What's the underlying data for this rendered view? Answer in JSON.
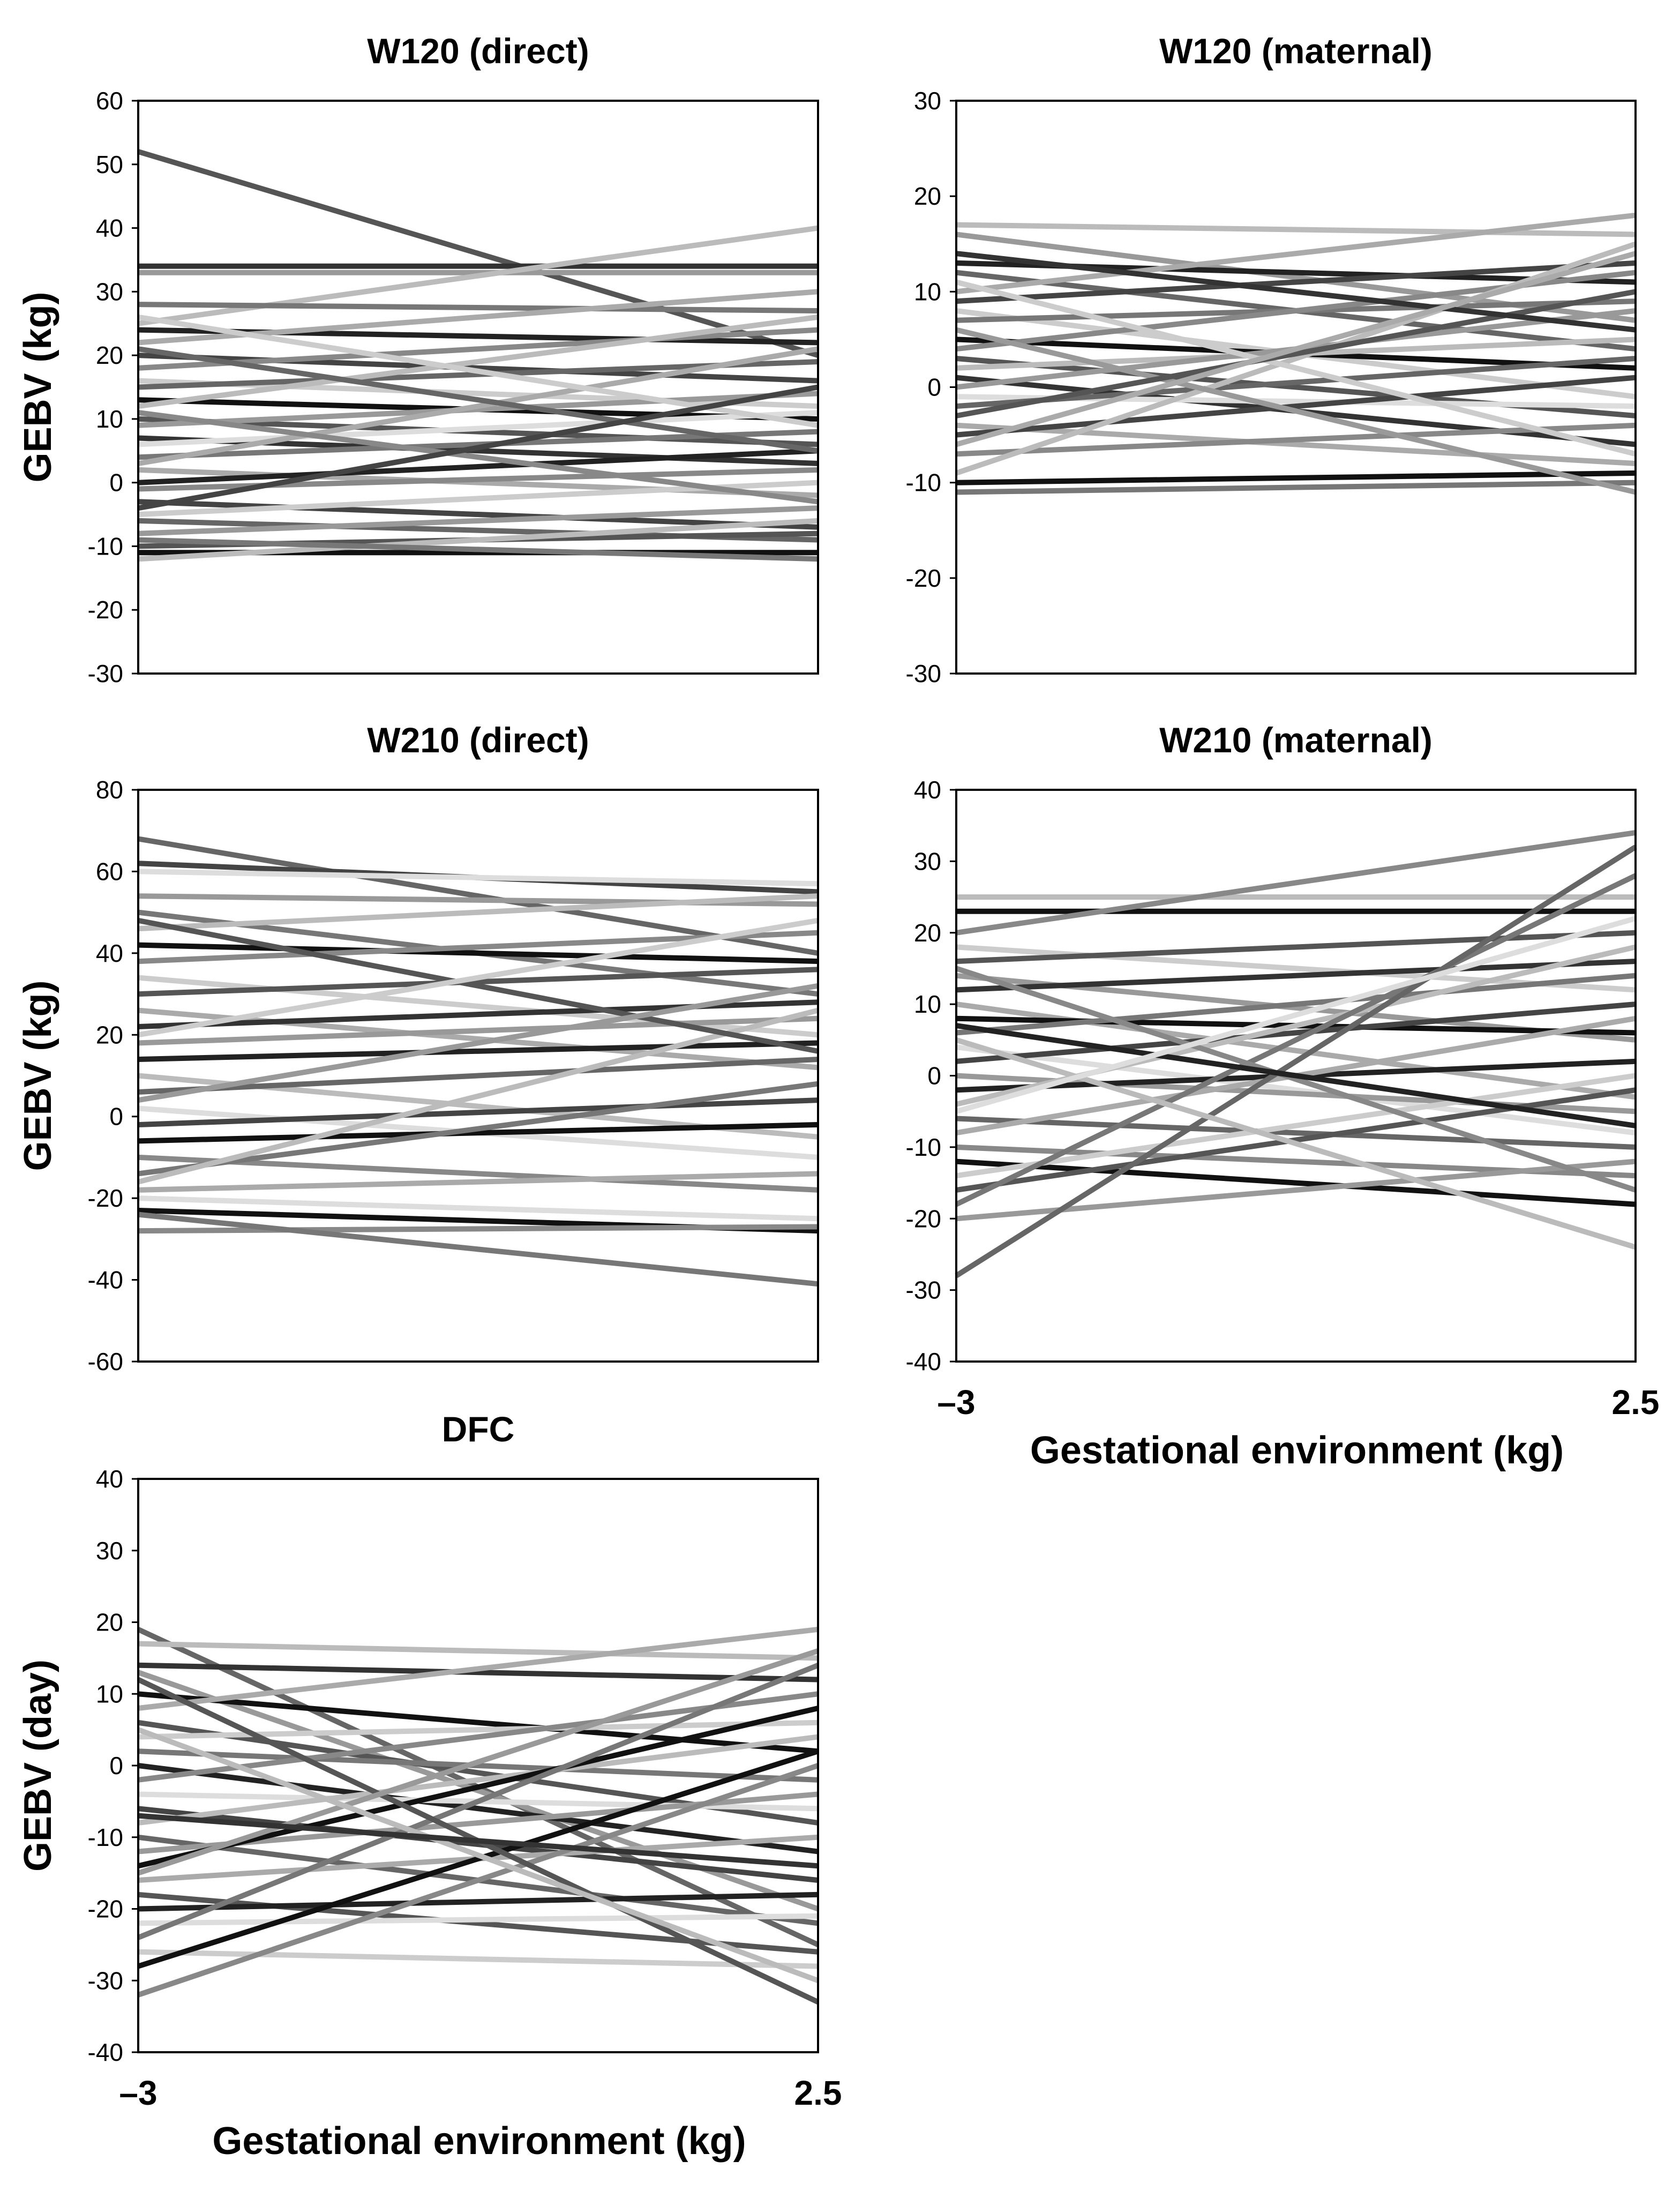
{
  "chart_data": [
    {
      "type": "line",
      "title": "W120 (direct)",
      "ylabel": "GEBV (kg)",
      "xlabel": "",
      "x_tick_labels": [],
      "x": [
        -3,
        2.5
      ],
      "ylim": [
        -30,
        60
      ],
      "y_ticks": [
        "60",
        "50",
        "40",
        "30",
        "20",
        "10",
        "0",
        "-10",
        "-20",
        "-30"
      ],
      "series": [
        {
          "name": "s1",
          "start": 52,
          "end": 20,
          "color": "#555555"
        },
        {
          "name": "s2",
          "start": 34,
          "end": 34,
          "color": "#333333"
        },
        {
          "name": "s3",
          "start": 33,
          "end": 33,
          "color": "#999999"
        },
        {
          "name": "s4",
          "start": 25,
          "end": 40,
          "color": "#bbbbbb"
        },
        {
          "name": "s5",
          "start": 28,
          "end": 27,
          "color": "#777777"
        },
        {
          "name": "s6",
          "start": 24,
          "end": 22,
          "color": "#222222"
        },
        {
          "name": "s7",
          "start": 22,
          "end": 30,
          "color": "#aaaaaa"
        },
        {
          "name": "s8",
          "start": 20,
          "end": 16,
          "color": "#444444"
        },
        {
          "name": "s9",
          "start": 18,
          "end": 24,
          "color": "#888888"
        },
        {
          "name": "s10",
          "start": 16,
          "end": 12,
          "color": "#cccccc"
        },
        {
          "name": "s11",
          "start": 15,
          "end": 19,
          "color": "#666666"
        },
        {
          "name": "s12",
          "start": 13,
          "end": 10,
          "color": "#111111"
        },
        {
          "name": "s13",
          "start": 12,
          "end": 26,
          "color": "#bbbbbb"
        },
        {
          "name": "s14",
          "start": 10,
          "end": 6,
          "color": "#555555"
        },
        {
          "name": "s15",
          "start": 9,
          "end": 14,
          "color": "#999999"
        },
        {
          "name": "s16",
          "start": 7,
          "end": 3,
          "color": "#333333"
        },
        {
          "name": "s17",
          "start": 6,
          "end": 11,
          "color": "#dddddd"
        },
        {
          "name": "s18",
          "start": 4,
          "end": 8,
          "color": "#777777"
        },
        {
          "name": "s19",
          "start": 2,
          "end": -2,
          "color": "#aaaaaa"
        },
        {
          "name": "s20",
          "start": 0,
          "end": 5,
          "color": "#222222"
        },
        {
          "name": "s21",
          "start": -1,
          "end": 2,
          "color": "#888888"
        },
        {
          "name": "s22",
          "start": -3,
          "end": -7,
          "color": "#444444"
        },
        {
          "name": "s23",
          "start": -5,
          "end": 0,
          "color": "#cccccc"
        },
        {
          "name": "s24",
          "start": -6,
          "end": -9,
          "color": "#666666"
        },
        {
          "name": "s25",
          "start": -8,
          "end": -4,
          "color": "#999999"
        },
        {
          "name": "s26",
          "start": -10,
          "end": -8,
          "color": "#555555"
        },
        {
          "name": "s27",
          "start": -11,
          "end": -11,
          "color": "#111111"
        },
        {
          "name": "s28",
          "start": -12,
          "end": -6,
          "color": "#bbbbbb"
        },
        {
          "name": "s29",
          "start": -9,
          "end": -12,
          "color": "#777777"
        },
        {
          "name": "s30",
          "start": 3,
          "end": 21,
          "color": "#aaaaaa"
        },
        {
          "name": "s31",
          "start": 21,
          "end": 5,
          "color": "#666666"
        },
        {
          "name": "s32",
          "start": 26,
          "end": 9,
          "color": "#cccccc"
        },
        {
          "name": "s33",
          "start": 11,
          "end": -3,
          "color": "#888888"
        },
        {
          "name": "s34",
          "start": -4,
          "end": 15,
          "color": "#444444"
        }
      ]
    },
    {
      "type": "line",
      "title": "W120 (maternal)",
      "ylabel": "",
      "xlabel": "",
      "x_tick_labels": [],
      "x": [
        -3,
        2.5
      ],
      "ylim": [
        -30,
        30
      ],
      "y_ticks": [
        "30",
        "20",
        "10",
        "0",
        "-10",
        "-20",
        "-30"
      ],
      "series": [
        {
          "name": "s1",
          "start": 17,
          "end": 16,
          "color": "#bbbbbb"
        },
        {
          "name": "s2",
          "start": 16,
          "end": 7,
          "color": "#999999"
        },
        {
          "name": "s3",
          "start": 13,
          "end": 11,
          "color": "#222222"
        },
        {
          "name": "s4",
          "start": 12,
          "end": 4,
          "color": "#666666"
        },
        {
          "name": "s5",
          "start": 10,
          "end": 18,
          "color": "#aaaaaa"
        },
        {
          "name": "s6",
          "start": 9,
          "end": 13,
          "color": "#444444"
        },
        {
          "name": "s7",
          "start": 8,
          "end": -1,
          "color": "#cccccc"
        },
        {
          "name": "s8",
          "start": 7,
          "end": 9,
          "color": "#777777"
        },
        {
          "name": "s9",
          "start": 5,
          "end": 2,
          "color": "#111111"
        },
        {
          "name": "s10",
          "start": 4,
          "end": 12,
          "color": "#888888"
        },
        {
          "name": "s11",
          "start": 3,
          "end": -3,
          "color": "#555555"
        },
        {
          "name": "s12",
          "start": 2,
          "end": 5,
          "color": "#bbbbbb"
        },
        {
          "name": "s13",
          "start": 1,
          "end": -6,
          "color": "#333333"
        },
        {
          "name": "s14",
          "start": 0,
          "end": 8,
          "color": "#999999"
        },
        {
          "name": "s15",
          "start": -1,
          "end": -2,
          "color": "#dddddd"
        },
        {
          "name": "s16",
          "start": -2,
          "end": 3,
          "color": "#666666"
        },
        {
          "name": "s17",
          "start": -4,
          "end": -8,
          "color": "#aaaaaa"
        },
        {
          "name": "s18",
          "start": -5,
          "end": 1,
          "color": "#444444"
        },
        {
          "name": "s19",
          "start": -7,
          "end": -4,
          "color": "#888888"
        },
        {
          "name": "s20",
          "start": -10,
          "end": -9,
          "color": "#111111"
        },
        {
          "name": "s21",
          "start": -11,
          "end": -10,
          "color": "#777777"
        },
        {
          "name": "s22",
          "start": -9,
          "end": 15,
          "color": "#bbbbbb"
        },
        {
          "name": "s23",
          "start": 6,
          "end": -11,
          "color": "#999999"
        },
        {
          "name": "s24",
          "start": 11,
          "end": -7,
          "color": "#cccccc"
        },
        {
          "name": "s25",
          "start": -3,
          "end": 10,
          "color": "#555555"
        },
        {
          "name": "s26",
          "start": 14,
          "end": 6,
          "color": "#333333"
        },
        {
          "name": "s27",
          "start": -6,
          "end": 14,
          "color": "#aaaaaa"
        }
      ]
    },
    {
      "type": "line",
      "title": "W210 (direct)",
      "ylabel": "GEBV (kg)",
      "xlabel": "",
      "x_tick_labels": [],
      "x": [
        -3,
        2.5
      ],
      "ylim": [
        -60,
        80
      ],
      "y_ticks": [
        "80",
        "60",
        "40",
        "20",
        "0",
        "-20",
        "-40",
        "-60"
      ],
      "series": [
        {
          "name": "s1",
          "start": 68,
          "end": 40,
          "color": "#666666"
        },
        {
          "name": "s2",
          "start": 62,
          "end": 55,
          "color": "#444444"
        },
        {
          "name": "s3",
          "start": 60,
          "end": 57,
          "color": "#dddddd"
        },
        {
          "name": "s4",
          "start": 54,
          "end": 52,
          "color": "#999999"
        },
        {
          "name": "s5",
          "start": 50,
          "end": 30,
          "color": "#777777"
        },
        {
          "name": "s6",
          "start": 46,
          "end": 54,
          "color": "#bbbbbb"
        },
        {
          "name": "s7",
          "start": 42,
          "end": 38,
          "color": "#111111"
        },
        {
          "name": "s8",
          "start": 38,
          "end": 45,
          "color": "#888888"
        },
        {
          "name": "s9",
          "start": 34,
          "end": 20,
          "color": "#cccccc"
        },
        {
          "name": "s10",
          "start": 30,
          "end": 36,
          "color": "#555555"
        },
        {
          "name": "s11",
          "start": 26,
          "end": 12,
          "color": "#aaaaaa"
        },
        {
          "name": "s12",
          "start": 22,
          "end": 28,
          "color": "#333333"
        },
        {
          "name": "s13",
          "start": 18,
          "end": 24,
          "color": "#999999"
        },
        {
          "name": "s14",
          "start": 14,
          "end": 18,
          "color": "#222222"
        },
        {
          "name": "s15",
          "start": 10,
          "end": -5,
          "color": "#bbbbbb"
        },
        {
          "name": "s16",
          "start": 6,
          "end": 14,
          "color": "#666666"
        },
        {
          "name": "s17",
          "start": 2,
          "end": -10,
          "color": "#dddddd"
        },
        {
          "name": "s18",
          "start": -2,
          "end": 4,
          "color": "#444444"
        },
        {
          "name": "s19",
          "start": -6,
          "end": -2,
          "color": "#111111"
        },
        {
          "name": "s20",
          "start": -10,
          "end": -18,
          "color": "#888888"
        },
        {
          "name": "s21",
          "start": -14,
          "end": 8,
          "color": "#777777"
        },
        {
          "name": "s22",
          "start": -18,
          "end": -14,
          "color": "#aaaaaa"
        },
        {
          "name": "s23",
          "start": -20,
          "end": -25,
          "color": "#dddddd"
        },
        {
          "name": "s24",
          "start": -23,
          "end": -28,
          "color": "#111111"
        },
        {
          "name": "s25",
          "start": -28,
          "end": -27,
          "color": "#888888"
        },
        {
          "name": "s26",
          "start": -24,
          "end": -41,
          "color": "#777777"
        },
        {
          "name": "s27",
          "start": -16,
          "end": 26,
          "color": "#bbbbbb"
        },
        {
          "name": "s28",
          "start": 48,
          "end": 16,
          "color": "#555555"
        },
        {
          "name": "s29",
          "start": 20,
          "end": 48,
          "color": "#cccccc"
        },
        {
          "name": "s30",
          "start": 4,
          "end": 32,
          "color": "#999999"
        }
      ]
    },
    {
      "type": "line",
      "title": "W210 (maternal)",
      "ylabel": "",
      "xlabel": "Gestational environment (kg)",
      "x_tick_labels": [
        "–3",
        "2.5"
      ],
      "x": [
        -3,
        2.5
      ],
      "ylim": [
        -40,
        40
      ],
      "y_ticks": [
        "40",
        "30",
        "20",
        "10",
        "0",
        "-10",
        "-20",
        "-30",
        "-40"
      ],
      "series": [
        {
          "name": "s1",
          "start": 25,
          "end": 25,
          "color": "#bbbbbb"
        },
        {
          "name": "s2",
          "start": 23,
          "end": 23,
          "color": "#111111"
        },
        {
          "name": "s3",
          "start": 20,
          "end": 34,
          "color": "#888888"
        },
        {
          "name": "s4",
          "start": 18,
          "end": 12,
          "color": "#cccccc"
        },
        {
          "name": "s5",
          "start": 16,
          "end": 20,
          "color": "#555555"
        },
        {
          "name": "s6",
          "start": 14,
          "end": 5,
          "color": "#999999"
        },
        {
          "name": "s7",
          "start": 12,
          "end": 16,
          "color": "#333333"
        },
        {
          "name": "s8",
          "start": 10,
          "end": -3,
          "color": "#aaaaaa"
        },
        {
          "name": "s9",
          "start": 8,
          "end": 6,
          "color": "#111111"
        },
        {
          "name": "s10",
          "start": 6,
          "end": 14,
          "color": "#777777"
        },
        {
          "name": "s11",
          "start": 4,
          "end": -8,
          "color": "#dddddd"
        },
        {
          "name": "s12",
          "start": 2,
          "end": 10,
          "color": "#444444"
        },
        {
          "name": "s13",
          "start": 0,
          "end": -5,
          "color": "#999999"
        },
        {
          "name": "s14",
          "start": -2,
          "end": 2,
          "color": "#222222"
        },
        {
          "name": "s15",
          "start": -4,
          "end": 18,
          "color": "#bbbbbb"
        },
        {
          "name": "s16",
          "start": -6,
          "end": -10,
          "color": "#666666"
        },
        {
          "name": "s17",
          "start": -8,
          "end": 8,
          "color": "#aaaaaa"
        },
        {
          "name": "s18",
          "start": -10,
          "end": -14,
          "color": "#888888"
        },
        {
          "name": "s19",
          "start": -12,
          "end": -18,
          "color": "#111111"
        },
        {
          "name": "s20",
          "start": -14,
          "end": 0,
          "color": "#cccccc"
        },
        {
          "name": "s21",
          "start": -16,
          "end": -2,
          "color": "#555555"
        },
        {
          "name": "s22",
          "start": -18,
          "end": 28,
          "color": "#777777"
        },
        {
          "name": "s23",
          "start": -20,
          "end": -12,
          "color": "#999999"
        },
        {
          "name": "s24",
          "start": -28,
          "end": 32,
          "color": "#666666"
        },
        {
          "name": "s25",
          "start": 5,
          "end": -24,
          "color": "#bbbbbb"
        },
        {
          "name": "s26",
          "start": 15,
          "end": -16,
          "color": "#888888"
        },
        {
          "name": "s27",
          "start": 7,
          "end": -7,
          "color": "#222222"
        },
        {
          "name": "s28",
          "start": -5,
          "end": 22,
          "color": "#dddddd"
        }
      ]
    },
    {
      "type": "line",
      "title": "DFC",
      "ylabel": "GEBV (day)",
      "xlabel": "Gestational environment (kg)",
      "x_tick_labels": [
        "–3",
        "2.5"
      ],
      "x": [
        -3,
        2.5
      ],
      "ylim": [
        -40,
        40
      ],
      "y_ticks": [
        "40",
        "30",
        "20",
        "10",
        "0",
        "-10",
        "-20",
        "-30",
        "-40"
      ],
      "series": [
        {
          "name": "s1",
          "start": 19,
          "end": -25,
          "color": "#666666"
        },
        {
          "name": "s2",
          "start": 17,
          "end": 15,
          "color": "#bbbbbb"
        },
        {
          "name": "s3",
          "start": 14,
          "end": 12,
          "color": "#333333"
        },
        {
          "name": "s4",
          "start": 13,
          "end": -20,
          "color": "#999999"
        },
        {
          "name": "s5",
          "start": 10,
          "end": 2,
          "color": "#111111"
        },
        {
          "name": "s6",
          "start": 8,
          "end": 19,
          "color": "#aaaaaa"
        },
        {
          "name": "s7",
          "start": 6,
          "end": -8,
          "color": "#555555"
        },
        {
          "name": "s8",
          "start": 4,
          "end": 6,
          "color": "#cccccc"
        },
        {
          "name": "s9",
          "start": 2,
          "end": -2,
          "color": "#777777"
        },
        {
          "name": "s10",
          "start": 0,
          "end": -12,
          "color": "#222222"
        },
        {
          "name": "s11",
          "start": -2,
          "end": 10,
          "color": "#888888"
        },
        {
          "name": "s12",
          "start": -4,
          "end": -6,
          "color": "#dddddd"
        },
        {
          "name": "s13",
          "start": -6,
          "end": -16,
          "color": "#444444"
        },
        {
          "name": "s14",
          "start": -8,
          "end": 4,
          "color": "#bbbbbb"
        },
        {
          "name": "s15",
          "start": -10,
          "end": -22,
          "color": "#666666"
        },
        {
          "name": "s16",
          "start": -12,
          "end": -4,
          "color": "#999999"
        },
        {
          "name": "s17",
          "start": -14,
          "end": 8,
          "color": "#111111"
        },
        {
          "name": "s18",
          "start": -16,
          "end": -10,
          "color": "#aaaaaa"
        },
        {
          "name": "s19",
          "start": -18,
          "end": -26,
          "color": "#555555"
        },
        {
          "name": "s20",
          "start": -20,
          "end": -18,
          "color": "#222222"
        },
        {
          "name": "s21",
          "start": -22,
          "end": -21,
          "color": "#dddddd"
        },
        {
          "name": "s22",
          "start": -24,
          "end": 14,
          "color": "#777777"
        },
        {
          "name": "s23",
          "start": -26,
          "end": -28,
          "color": "#cccccc"
        },
        {
          "name": "s24",
          "start": -28,
          "end": 2,
          "color": "#111111"
        },
        {
          "name": "s25",
          "start": -32,
          "end": 0,
          "color": "#888888"
        },
        {
          "name": "s26",
          "start": 12,
          "end": -33,
          "color": "#555555"
        },
        {
          "name": "s27",
          "start": -15,
          "end": 16,
          "color": "#999999"
        },
        {
          "name": "s28",
          "start": 5,
          "end": -30,
          "color": "#bbbbbb"
        },
        {
          "name": "s29",
          "start": -7,
          "end": -14,
          "color": "#333333"
        }
      ]
    }
  ]
}
